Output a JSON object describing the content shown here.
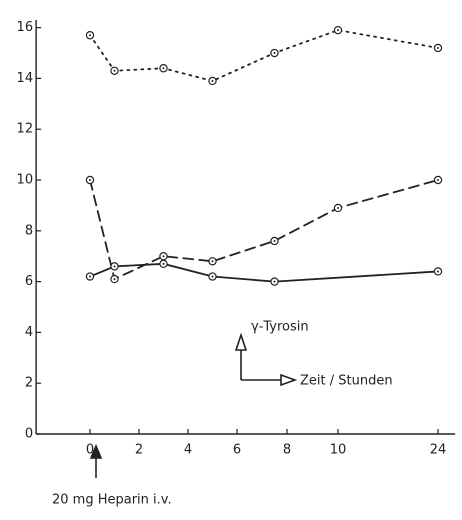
{
  "chart_data": {
    "type": "line",
    "annotations": [
      "γ-Tyrosin",
      "Zeit / Stunden",
      "20 mg Heparin i.v."
    ],
    "series": [
      {
        "color": "#222222",
        "dash": "dotted",
        "x": [
          0,
          1,
          3,
          5,
          7.5,
          10,
          24
        ],
        "values": [
          15.7,
          14.3,
          14.4,
          13.9,
          15.0,
          15.9,
          15.2
        ]
      },
      {
        "color": "#222222",
        "dash": "dashed",
        "x": [
          0,
          1,
          3,
          5,
          7.5,
          10,
          24
        ],
        "values": [
          10.0,
          6.1,
          7.0,
          6.8,
          7.6,
          8.9,
          10.0
        ]
      },
      {
        "color": "#222222",
        "dash": "solid",
        "x": [
          0,
          1,
          3,
          5,
          7.5,
          24
        ],
        "values": [
          6.2,
          6.6,
          6.7,
          6.2,
          6.0,
          6.4
        ]
      }
    ],
    "xlim": [
      -2.2,
      26.4
    ],
    "xticks": [
      0,
      2,
      4,
      6,
      8,
      10,
      24
    ],
    "ylim": [
      0,
      16.3
    ],
    "yticks": [
      0,
      2,
      4,
      6,
      8,
      10,
      12,
      14,
      16
    ],
    "grid": false
  }
}
